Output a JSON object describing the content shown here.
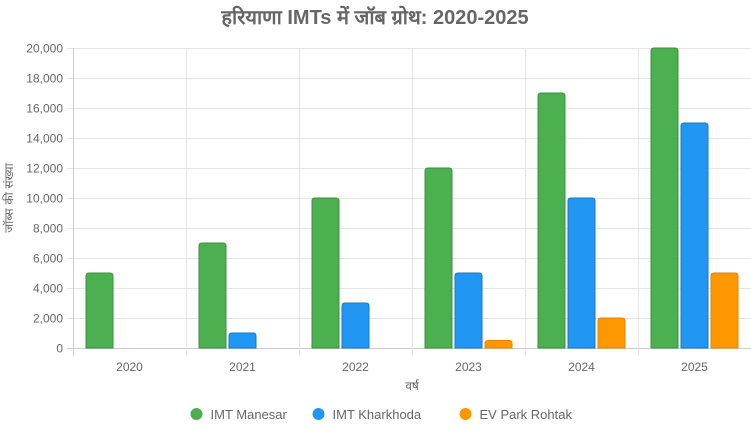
{
  "chart_data": {
    "type": "bar",
    "title": "हरियाणा IMTs में जॉब ग्रोथ: 2020-2025",
    "xlabel": "वर्ष",
    "ylabel": "जॉब्स की संख्या",
    "categories": [
      "2020",
      "2021",
      "2022",
      "2023",
      "2024",
      "2025"
    ],
    "series": [
      {
        "name": "IMT Manesar",
        "color": "#4CAF50",
        "border": "#3d9140",
        "values": [
          5000,
          7000,
          10000,
          12000,
          17000,
          20000
        ]
      },
      {
        "name": "IMT Kharkhoda",
        "color": "#2196F3",
        "border": "#1a78c2",
        "values": [
          0,
          1000,
          3000,
          5000,
          10000,
          15000
        ]
      },
      {
        "name": "EV Park Rohtak",
        "color": "#FF9800",
        "border": "#e08600",
        "values": [
          0,
          0,
          0,
          500,
          2000,
          5000
        ]
      }
    ],
    "ylim": [
      0,
      20000
    ],
    "yticks": [
      0,
      2000,
      4000,
      6000,
      8000,
      10000,
      12000,
      14000,
      16000,
      18000,
      20000
    ],
    "ytick_labels": [
      "0",
      "2,000",
      "4,000",
      "6,000",
      "8,000",
      "10,000",
      "12,000",
      "14,000",
      "16,000",
      "18,000",
      "20,000"
    ],
    "grid": true,
    "legend_position": "bottom"
  }
}
